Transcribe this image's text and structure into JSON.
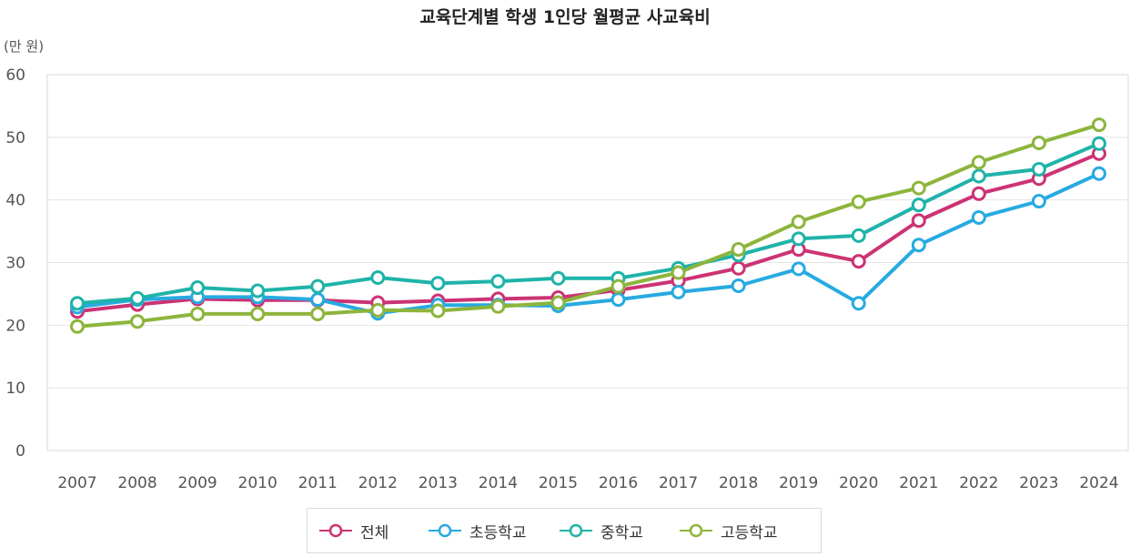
{
  "chart_data": {
    "type": "line",
    "title": "교육단계별 학생 1인당 월평균 사교육비",
    "unit_label": "(만 원)",
    "xlabel": "",
    "ylabel": "",
    "ylim": [
      0,
      60
    ],
    "yticks": [
      "0",
      "10",
      "20",
      "30",
      "40",
      "50",
      "60"
    ],
    "grid": true,
    "legend_position": "bottom",
    "categories": [
      "2007",
      "2008",
      "2009",
      "2010",
      "2011",
      "2012",
      "2013",
      "2014",
      "2015",
      "2016",
      "2017",
      "2018",
      "2019",
      "2020",
      "2021",
      "2022",
      "2023",
      "2024"
    ],
    "series": [
      {
        "name": "전체",
        "color": "#cc3374",
        "values": [
          22.2,
          23.3,
          24.2,
          24.0,
          24.0,
          23.6,
          23.9,
          24.2,
          24.4,
          25.6,
          27.1,
          29.1,
          32.1,
          30.2,
          36.7,
          41.0,
          43.4,
          47.4
        ]
      },
      {
        "name": "초등학교",
        "color": "#27aae1",
        "values": [
          22.9,
          24.1,
          24.5,
          24.5,
          24.1,
          21.9,
          23.2,
          23.2,
          23.1,
          24.1,
          25.3,
          26.3,
          29.0,
          23.5,
          32.8,
          37.2,
          39.8,
          44.2
        ]
      },
      {
        "name": "중학교",
        "color": "#1fb3a9",
        "values": [
          23.5,
          24.3,
          26.0,
          25.5,
          26.2,
          27.6,
          26.7,
          27.0,
          27.5,
          27.5,
          29.1,
          31.2,
          33.8,
          34.3,
          39.2,
          43.8,
          44.9,
          49.0
        ]
      },
      {
        "name": "고등학교",
        "color": "#8db53c",
        "values": [
          19.8,
          20.6,
          21.8,
          21.8,
          21.8,
          22.4,
          22.3,
          23.0,
          23.6,
          26.2,
          28.4,
          32.1,
          36.5,
          39.7,
          41.9,
          46.0,
          49.1,
          52.0
        ]
      }
    ]
  }
}
